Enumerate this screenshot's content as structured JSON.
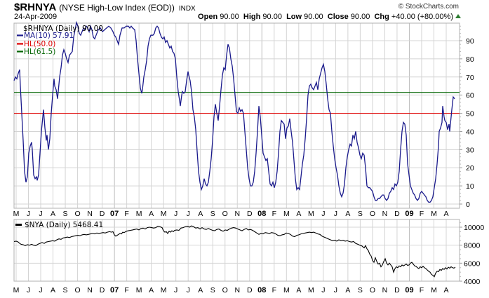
{
  "header": {
    "symbol": "$RHNYA",
    "description": "(NYSE High-Low Index (EOD))",
    "exchange": "INDX",
    "date": "24-Apr-2009",
    "watermark": "© StockCharts.com",
    "quote": {
      "open_label": "Open",
      "open": "90.00",
      "high_label": "High",
      "high": "90.00",
      "low_label": "Low",
      "low": "90.00",
      "close_label": "Close",
      "close": "90.00",
      "chg_label": "Chg",
      "chg": "+40.00 (+80.00%)",
      "direction_icon": "up-triangle-icon"
    }
  },
  "colors": {
    "price_line": "#1a1a8c",
    "hl50": "#dd0000",
    "hl615": "#006400",
    "nya_line": "#000000",
    "grid": "#d4d4d4",
    "border": "#b0b0b0",
    "up": "#2e7d32"
  },
  "upper_panel": {
    "legend": [
      {
        "label": "$RHNYA (Daily) 90.00",
        "color": "#000000",
        "swatch": false
      },
      {
        "label": "MA(10) 57.91",
        "color": "#1a1a8c",
        "swatch": true
      },
      {
        "label": "HL(50.0)",
        "color": "#dd0000",
        "swatch": true
      },
      {
        "label": "HL(61.5)",
        "color": "#006400",
        "swatch": true
      }
    ],
    "y_ticks": [
      "90",
      "80",
      "70",
      "60",
      "50",
      "40",
      "30",
      "20",
      "10",
      "0"
    ]
  },
  "lower_panel": {
    "legend": [
      {
        "label": "$NYA (Daily) 5468.41",
        "color": "#000000",
        "swatch": true
      }
    ],
    "y_ticks": [
      "10000",
      "8000",
      "6000",
      "4000"
    ]
  },
  "x_axis": {
    "labels": [
      "M",
      "J",
      "J",
      "A",
      "S",
      "O",
      "N",
      "D",
      "07",
      "F",
      "M",
      "A",
      "M",
      "J",
      "J",
      "A",
      "S",
      "O",
      "N",
      "D",
      "08",
      "F",
      "M",
      "A",
      "M",
      "J",
      "J",
      "A",
      "S",
      "O",
      "N",
      "D",
      "09",
      "F",
      "M",
      "A"
    ]
  },
  "chart_data": [
    {
      "type": "line",
      "title": "$RHNYA (NYSE High-Low Index (EOD)) INDX",
      "subtitle": "24-Apr-2009",
      "xlabel": "",
      "ylabel": "",
      "ylim": [
        0,
        100
      ],
      "grid": true,
      "legend_position": "top-left",
      "categories": [
        "May-06",
        "Jun-06",
        "Jul-06",
        "Aug-06",
        "Sep-06",
        "Oct-06",
        "Nov-06",
        "Dec-06",
        "Jan-07",
        "Feb-07",
        "Mar-07",
        "Apr-07",
        "May-07",
        "Jun-07",
        "Jul-07",
        "Aug-07",
        "Sep-07",
        "Oct-07",
        "Nov-07",
        "Dec-07",
        "Jan-08",
        "Feb-08",
        "Mar-08",
        "Apr-08",
        "May-08",
        "Jun-08",
        "Jul-08",
        "Aug-08",
        "Sep-08",
        "Oct-08",
        "Nov-08",
        "Dec-08",
        "Jan-09",
        "Feb-09",
        "Mar-09",
        "Apr-09"
      ],
      "series": [
        {
          "name": "MA(10)",
          "values": [
            70,
            15,
            30,
            45,
            80,
            78,
            95,
            96,
            97,
            96,
            93,
            62,
            93,
            90,
            60,
            15,
            45,
            83,
            50,
            8,
            50,
            10,
            42,
            45,
            65,
            75,
            40,
            5,
            35,
            15,
            3,
            5,
            10,
            45,
            5,
            58
          ]
        },
        {
          "name": "HL(50.0)",
          "values": [
            50,
            50,
            50,
            50,
            50,
            50,
            50,
            50,
            50,
            50,
            50,
            50,
            50,
            50,
            50,
            50,
            50,
            50,
            50,
            50,
            50,
            50,
            50,
            50,
            50,
            50,
            50,
            50,
            50,
            50,
            50,
            50,
            50,
            50,
            50,
            50
          ]
        },
        {
          "name": "HL(61.5)",
          "values": [
            61.5,
            61.5,
            61.5,
            61.5,
            61.5,
            61.5,
            61.5,
            61.5,
            61.5,
            61.5,
            61.5,
            61.5,
            61.5,
            61.5,
            61.5,
            61.5,
            61.5,
            61.5,
            61.5,
            61.5,
            61.5,
            61.5,
            61.5,
            61.5,
            61.5,
            61.5,
            61.5,
            61.5,
            61.5,
            61.5,
            61.5,
            61.5,
            61.5,
            61.5,
            61.5,
            61.5
          ]
        }
      ],
      "last_values": {
        "daily": 90.0,
        "ma10": 57.91
      }
    },
    {
      "type": "line",
      "title": "$NYA (Daily) 5468.41",
      "ylim": [
        3900,
        10600
      ],
      "grid": true,
      "categories": [
        "May-06",
        "Jun-06",
        "Jul-06",
        "Aug-06",
        "Sep-06",
        "Oct-06",
        "Nov-06",
        "Dec-06",
        "Jan-07",
        "Feb-07",
        "Mar-07",
        "Apr-07",
        "May-07",
        "Jun-07",
        "Jul-07",
        "Aug-07",
        "Sep-07",
        "Oct-07",
        "Nov-07",
        "Dec-07",
        "Jan-08",
        "Feb-08",
        "Mar-08",
        "Apr-08",
        "May-08",
        "Jun-08",
        "Jul-08",
        "Aug-08",
        "Sep-08",
        "Oct-08",
        "Nov-08",
        "Dec-08",
        "Jan-09",
        "Feb-09",
        "Mar-09",
        "Apr-09"
      ],
      "series": [
        {
          "name": "$NYA",
          "values": [
            8400,
            8000,
            8100,
            8200,
            8400,
            8700,
            8800,
            9000,
            9100,
            9150,
            9000,
            9400,
            9700,
            9750,
            9600,
            9200,
            9500,
            10100,
            9600,
            9700,
            9200,
            8900,
            8800,
            9200,
            9500,
            8900,
            8600,
            8500,
            7900,
            5700,
            5400,
            5600,
            5500,
            5000,
            4400,
            5468
          ]
        }
      ],
      "last_value": 5468.41
    }
  ]
}
